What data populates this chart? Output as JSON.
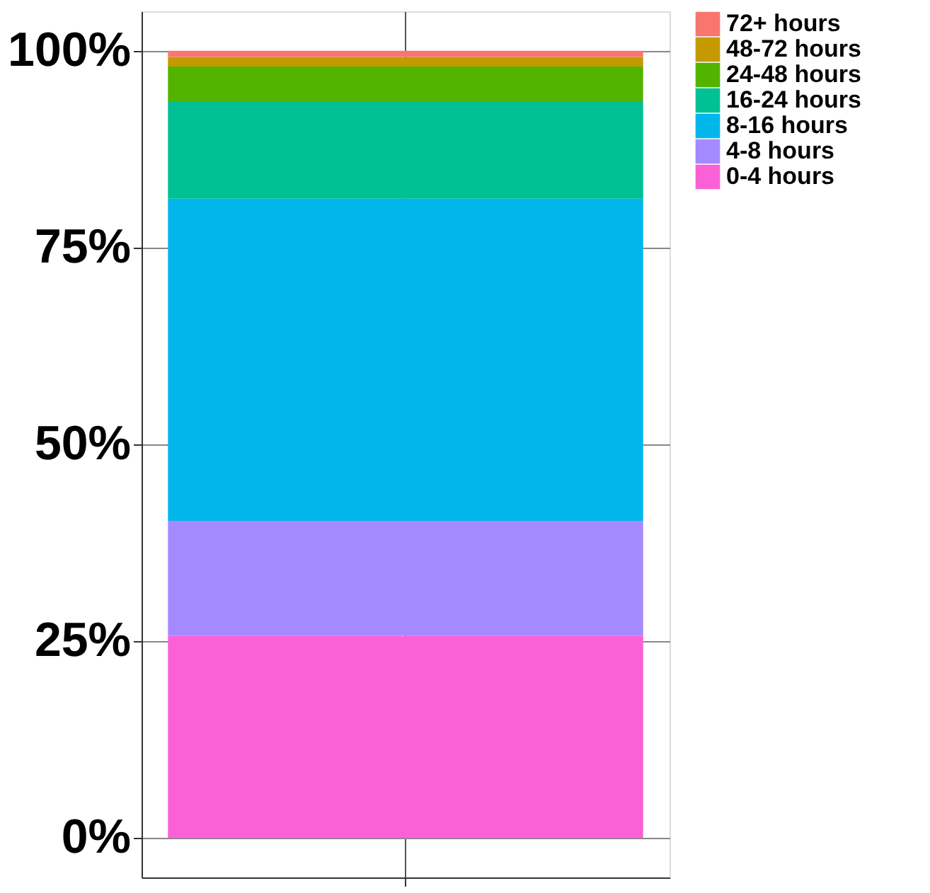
{
  "chart_data": {
    "type": "bar",
    "stacked": true,
    "categories": [
      null
    ],
    "series": [
      {
        "name": "0-4 hours",
        "color": "#fb61d7",
        "values": [
          25.7
        ]
      },
      {
        "name": "4-8 hours",
        "color": "#a58aff",
        "values": [
          14.6
        ]
      },
      {
        "name": "8-16 hours",
        "color": "#00b6eb",
        "values": [
          40.9
        ]
      },
      {
        "name": "16-24 hours",
        "color": "#00c094",
        "values": [
          12.3
        ]
      },
      {
        "name": "24-48 hours",
        "color": "#53b400",
        "values": [
          4.5
        ]
      },
      {
        "name": "48-72 hours",
        "color": "#c49a00",
        "values": [
          1.2
        ]
      },
      {
        "name": "72+ hours",
        "color": "#f8766d",
        "values": [
          0.8
        ]
      }
    ],
    "ylim": [
      -5,
      105
    ],
    "yticks": [
      {
        "value": 0,
        "label": "0%"
      },
      {
        "value": 25,
        "label": "25%"
      },
      {
        "value": 50,
        "label": "50%"
      },
      {
        "value": 75,
        "label": "75%"
      },
      {
        "value": 100,
        "label": "100%"
      }
    ],
    "grid": true,
    "legend": "right",
    "tick_labels": "y"
  }
}
